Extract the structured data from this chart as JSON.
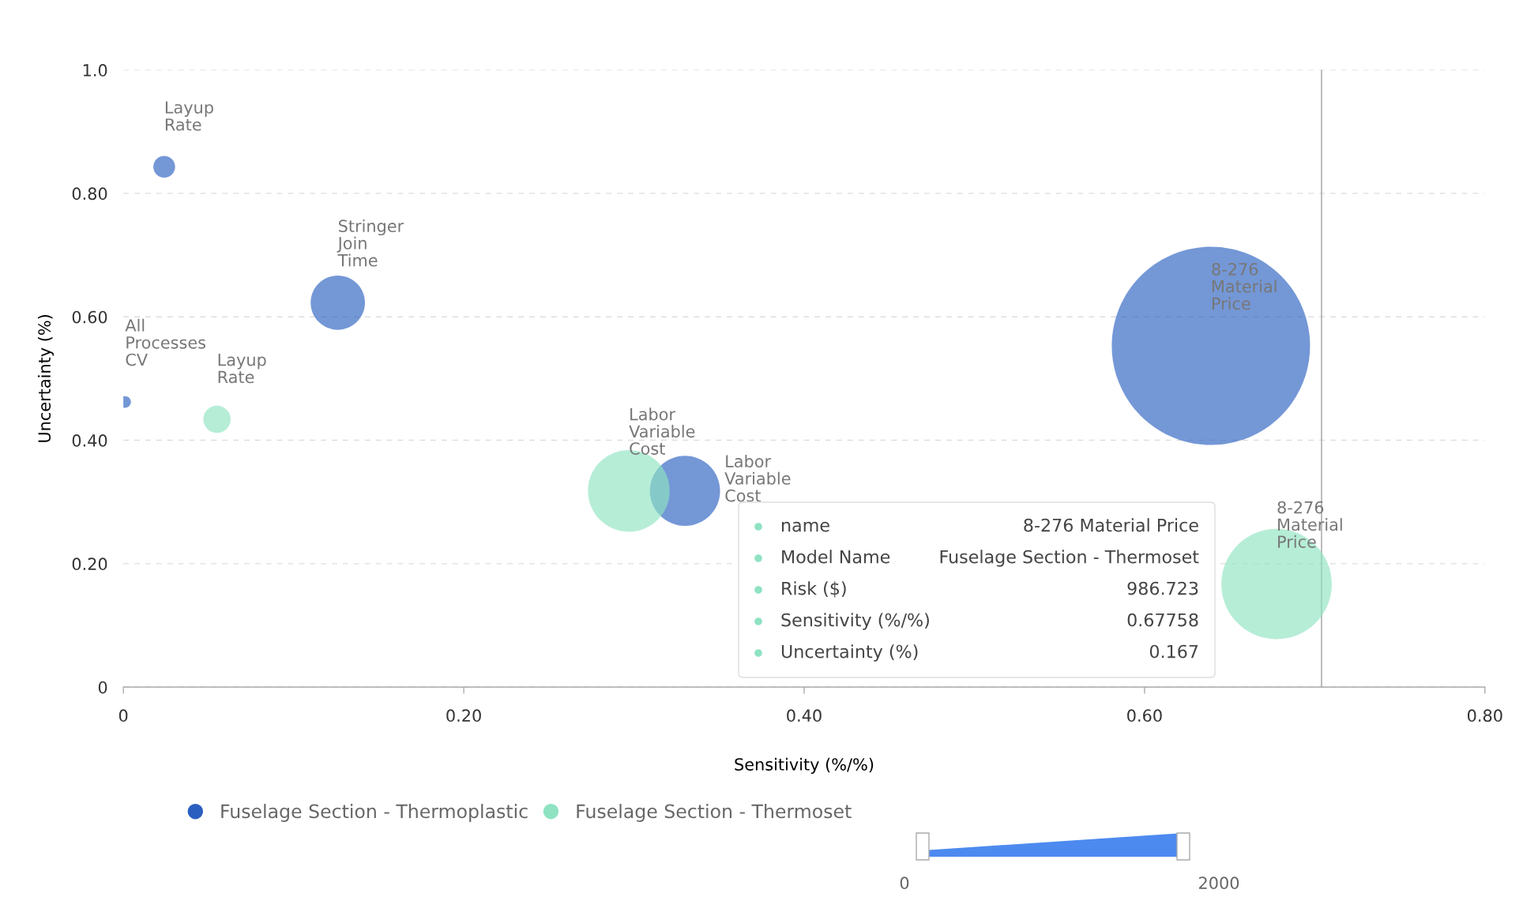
{
  "chart_data": {
    "type": "bubble",
    "xlabel": "Sensitivity (%/%)",
    "ylabel": "Uncertainty (%)",
    "series": [
      {
        "name": "Fuselage Section - Thermoplastic",
        "color": "#2a5fc0",
        "x": [
          0.024,
          0.126,
          0.001,
          0.33,
          0.639
        ],
        "values": [
          0.843,
          0.623,
          0.462,
          0.318,
          0.553
        ],
        "sizes": [
          0.012,
          0.075,
          0.0035,
          0.125,
          1
        ]
      },
      {
        "name": "Fuselage Section - Thermoset",
        "color": "#8fe3c2",
        "x": [
          0.055,
          0.297,
          0.67758
        ],
        "values": [
          0.434,
          0.318,
          0.167
        ],
        "sizes": [
          0.019,
          0.17,
          0.31
        ]
      }
    ],
    "xlim": [
      0,
      0.8
    ],
    "xticks": [
      {
        "value": 0,
        "label": "0"
      },
      {
        "value": 0.2,
        "label": "0.20"
      },
      {
        "value": 0.4,
        "label": "0.40"
      },
      {
        "value": 0.6,
        "label": "0.60"
      },
      {
        "value": 0.8,
        "label": "0.80"
      }
    ],
    "ylim": [
      0,
      1.0
    ],
    "yticks": [
      {
        "value": 0,
        "label": "0"
      },
      {
        "value": 0.2,
        "label": "0.20"
      },
      {
        "value": 0.4,
        "label": "0.40"
      },
      {
        "value": 0.6,
        "label": "0.60"
      },
      {
        "value": 0.8,
        "label": "0.80"
      },
      {
        "value": 1.0,
        "label": "1.0"
      }
    ],
    "grid": "y",
    "legend": "bottom left",
    "ref_lines": [
      {
        "axis": "x",
        "value": 0.704,
        "color": "#b0b0b0"
      }
    ],
    "annotations": [
      {
        "text": "Layup Rate",
        "x": 0.024,
        "y": 0.843
      },
      {
        "text": "Stringer Join Time",
        "x": 0.126,
        "y": 0.623
      },
      {
        "text": "All Processes CV",
        "x": 0.001,
        "y": 0.462
      },
      {
        "text": "Labor Variable Cost",
        "x": 0.297,
        "y": 0.318
      },
      {
        "text": "Labor Variable Cost",
        "x": 0.33,
        "y": 0.318
      },
      {
        "text": "8-276 Material Price",
        "x": 0.639,
        "y": 0.553
      },
      {
        "text": "Layup Rate",
        "x": 0.055,
        "y": 0.434
      },
      {
        "text": "8-276 Material Price",
        "x": 0.67758,
        "y": 0.167
      },
      "name",
      "8-276 Material Price",
      "Model Name",
      "Fuselage Section - Thermoset",
      "Risk ($)",
      "986.723",
      "Sensitivity (%/%)",
      "0.67758",
      "Uncertainty (%)",
      "0.167",
      "0",
      "2000"
    ]
  }
}
